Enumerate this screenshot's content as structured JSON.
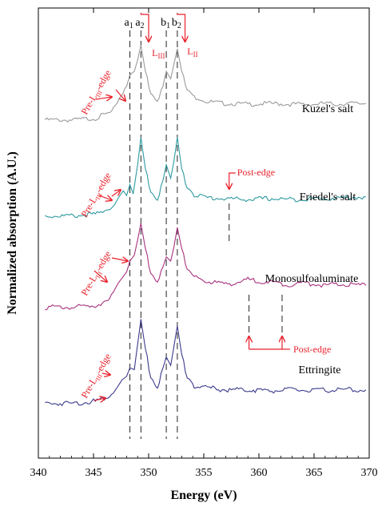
{
  "chart_data": {
    "type": "line",
    "xlabel": "Energy (eV)",
    "ylabel": "Normalized absorption (A.U.)",
    "xlim": [
      340,
      370
    ],
    "x_ticks": [
      "340",
      "345",
      "350",
      "355",
      "360",
      "365",
      "370"
    ],
    "y_ticks_labeled": false,
    "grid": false,
    "peak_labels": [
      {
        "text": "a",
        "sub": "1",
        "x": 348.3
      },
      {
        "text": "a",
        "sub": "2",
        "x": 349.3
      },
      {
        "text": "b",
        "sub": "1",
        "x": 351.6
      },
      {
        "text": "b",
        "sub": "2",
        "x": 352.6
      }
    ],
    "edge_labels": [
      {
        "text": "L",
        "sub": "III",
        "x": 350.2
      },
      {
        "text": "L",
        "sub": "II",
        "x": 353.4
      }
    ],
    "series": [
      {
        "name": "Kuzel's salt",
        "color": "#9a9a9a",
        "offset": 3.1,
        "scale": 0.82,
        "x": [
          340.6,
          343,
          345,
          346.5,
          347.0,
          347.5,
          348.0,
          348.3,
          348.7,
          349.0,
          349.3,
          349.7,
          350.2,
          350.8,
          351.3,
          351.6,
          352.0,
          352.3,
          352.6,
          353.0,
          353.5,
          354.3,
          355.5,
          357,
          359,
          361,
          363,
          365,
          366,
          367,
          368,
          369.7
        ],
        "values": [
          0.0,
          0.0,
          0.02,
          0.1,
          0.2,
          0.32,
          0.45,
          0.6,
          0.65,
          0.8,
          1.0,
          0.65,
          0.35,
          0.25,
          0.45,
          0.65,
          0.55,
          0.75,
          0.95,
          0.65,
          0.4,
          0.3,
          0.24,
          0.22,
          0.21,
          0.22,
          0.21,
          0.21,
          0.22,
          0.21,
          0.22,
          0.22
        ]
      },
      {
        "name": "Friedel's salt",
        "color": "#2e9aa0",
        "offset": 2.05,
        "scale": 0.86,
        "x": [
          340.6,
          343,
          345,
          346.5,
          346.9,
          347.3,
          347.7,
          348.0,
          348.3,
          348.6,
          349.0,
          349.3,
          349.7,
          350.2,
          350.8,
          351.3,
          351.6,
          352.0,
          352.3,
          352.6,
          353.0,
          353.5,
          354.3,
          355.5,
          357,
          359,
          361,
          363,
          365,
          366,
          367,
          369.7
        ],
        "values": [
          0.0,
          0.0,
          0.02,
          0.08,
          0.14,
          0.24,
          0.32,
          0.26,
          0.4,
          0.28,
          0.65,
          1.0,
          0.6,
          0.3,
          0.2,
          0.45,
          0.65,
          0.48,
          0.7,
          1.0,
          0.6,
          0.35,
          0.26,
          0.23,
          0.22,
          0.21,
          0.22,
          0.21,
          0.22,
          0.22,
          0.23,
          0.24
        ]
      },
      {
        "name": "Monosulfoaluminate",
        "color": "#a8337f",
        "offset": 1.05,
        "scale": 0.92,
        "x": [
          340.6,
          343,
          345,
          346.3,
          346.8,
          347.2,
          347.6,
          348.0,
          348.3,
          348.7,
          349.0,
          349.3,
          349.7,
          350.2,
          350.8,
          351.3,
          351.6,
          352.0,
          352.3,
          352.6,
          353.0,
          353.5,
          354.3,
          355.5,
          357,
          358.5,
          359,
          360,
          361,
          362,
          363,
          364,
          365,
          366,
          367,
          368,
          369.7
        ],
        "values": [
          0.0,
          0.0,
          0.02,
          0.08,
          0.18,
          0.28,
          0.35,
          0.42,
          0.55,
          0.62,
          0.8,
          1.0,
          0.7,
          0.4,
          0.3,
          0.48,
          0.6,
          0.55,
          0.72,
          0.95,
          0.7,
          0.45,
          0.35,
          0.3,
          0.28,
          0.3,
          0.33,
          0.31,
          0.3,
          0.28,
          0.27,
          0.29,
          0.28,
          0.26,
          0.27,
          0.27,
          0.26
        ]
      },
      {
        "name": "Ettringite",
        "color": "#3c3a8c",
        "offset": 0.0,
        "scale": 0.92,
        "x": [
          340.6,
          343,
          345,
          346.3,
          346.8,
          347.2,
          347.6,
          348.0,
          348.3,
          348.7,
          349.0,
          349.3,
          349.7,
          350.2,
          350.8,
          351.3,
          351.6,
          352.0,
          352.3,
          352.6,
          353.0,
          353.5,
          354.3,
          355.5,
          357,
          359,
          361,
          363,
          365,
          367,
          369.7
        ],
        "values": [
          0.0,
          0.0,
          0.02,
          0.06,
          0.12,
          0.2,
          0.28,
          0.32,
          0.42,
          0.4,
          0.7,
          1.0,
          0.65,
          0.3,
          0.18,
          0.42,
          0.55,
          0.45,
          0.68,
          0.92,
          0.58,
          0.3,
          0.2,
          0.18,
          0.16,
          0.16,
          0.15,
          0.16,
          0.15,
          0.16,
          0.16
        ]
      }
    ],
    "reference_lines_x": [
      348.3,
      349.3,
      351.6,
      352.6
    ],
    "annotations": {
      "pre_edge_label": "Pre-L",
      "pre_edge_sub": "III",
      "pre_edge_suffix": "-edge",
      "post_edge_label": "Post-edge",
      "post_edge_friedel_x": 357.3,
      "post_edge_mono_x": [
        359.1,
        362.1
      ]
    }
  }
}
